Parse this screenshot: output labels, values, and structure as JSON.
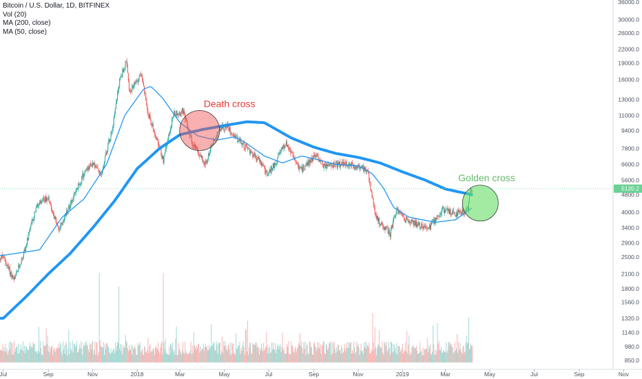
{
  "legend": {
    "symbol": "Bitcoin / U.S. Dollar, 1D, BITFINEX",
    "vol": "Vol (20)",
    "ma200": "MA (200, close)",
    "ma50": "MA (50, close)"
  },
  "price_badge": "5120.2",
  "annotations": {
    "death_cross": "Death cross",
    "golden_cross": "Golden cross"
  },
  "colors": {
    "up": "#26a69a",
    "down": "#ef5350",
    "ma": "#2196f3",
    "death": "#ef5350",
    "golden": "#4caf50",
    "badge": "#6bd195"
  },
  "chart_data": {
    "type": "candlestick",
    "title": "Bitcoin / U.S. Dollar, 1D, BITFINEX",
    "y_scale": "log",
    "y_ticks": [
      850,
      980,
      1140,
      1320,
      1560,
      1800,
      2100,
      2500,
      2900,
      3400,
      4000,
      4800,
      5600,
      6600,
      7800,
      9400,
      11000,
      13000,
      16000,
      19000,
      22000,
      26000,
      30000,
      36000
    ],
    "x_ticks": [
      "Jul",
      "Sep",
      "Nov",
      "2018",
      "Mar",
      "May",
      "Jul",
      "Sep",
      "Nov",
      "2019",
      "Mar",
      "May",
      "Jul",
      "Sep",
      "Nov"
    ],
    "price_anchors": [
      {
        "date": "2017-07-01",
        "close": 2500
      },
      {
        "date": "2017-07-16",
        "close": 1950
      },
      {
        "date": "2017-08-01",
        "close": 2800
      },
      {
        "date": "2017-08-15",
        "close": 4200
      },
      {
        "date": "2017-09-01",
        "close": 4700
      },
      {
        "date": "2017-09-15",
        "close": 3300
      },
      {
        "date": "2017-10-01",
        "close": 4350
      },
      {
        "date": "2017-10-20",
        "close": 6000
      },
      {
        "date": "2017-11-01",
        "close": 6700
      },
      {
        "date": "2017-11-12",
        "close": 5900
      },
      {
        "date": "2017-11-28",
        "close": 9800
      },
      {
        "date": "2017-12-08",
        "close": 16000
      },
      {
        "date": "2017-12-17",
        "close": 19200
      },
      {
        "date": "2017-12-22",
        "close": 13800
      },
      {
        "date": "2018-01-06",
        "close": 17100
      },
      {
        "date": "2018-01-17",
        "close": 11000
      },
      {
        "date": "2018-02-06",
        "close": 6900
      },
      {
        "date": "2018-02-20",
        "close": 11200
      },
      {
        "date": "2018-03-05",
        "close": 11500
      },
      {
        "date": "2018-03-18",
        "close": 8200
      },
      {
        "date": "2018-04-06",
        "close": 6600
      },
      {
        "date": "2018-04-12",
        "close": 7900
      },
      {
        "date": "2018-04-24",
        "close": 9600
      },
      {
        "date": "2018-05-05",
        "close": 9800
      },
      {
        "date": "2018-05-20",
        "close": 8500
      },
      {
        "date": "2018-06-05",
        "close": 7600
      },
      {
        "date": "2018-06-20",
        "close": 6700
      },
      {
        "date": "2018-06-29",
        "close": 5900
      },
      {
        "date": "2018-07-10",
        "close": 6700
      },
      {
        "date": "2018-07-24",
        "close": 8300
      },
      {
        "date": "2018-08-05",
        "close": 7000
      },
      {
        "date": "2018-08-14",
        "close": 6200
      },
      {
        "date": "2018-09-04",
        "close": 7300
      },
      {
        "date": "2018-09-15",
        "close": 6500
      },
      {
        "date": "2018-10-15",
        "close": 6600
      },
      {
        "date": "2018-11-13",
        "close": 6300
      },
      {
        "date": "2018-11-20",
        "close": 4700
      },
      {
        "date": "2018-11-25",
        "close": 3800
      },
      {
        "date": "2018-12-07",
        "close": 3400
      },
      {
        "date": "2018-12-15",
        "close": 3200
      },
      {
        "date": "2018-12-24",
        "close": 4100
      },
      {
        "date": "2019-01-10",
        "close": 3600
      },
      {
        "date": "2019-02-07",
        "close": 3400
      },
      {
        "date": "2019-02-24",
        "close": 4100
      },
      {
        "date": "2019-03-15",
        "close": 3950
      },
      {
        "date": "2019-04-01",
        "close": 4100
      },
      {
        "date": "2019-04-03",
        "close": 4950
      },
      {
        "date": "2019-04-07",
        "close": 5120
      }
    ],
    "ma50_anchors": [
      {
        "date": "2017-07-01",
        "value": 2550
      },
      {
        "date": "2017-08-20",
        "value": 2700
      },
      {
        "date": "2017-09-20",
        "value": 3800
      },
      {
        "date": "2017-10-20",
        "value": 4600
      },
      {
        "date": "2017-11-20",
        "value": 6600
      },
      {
        "date": "2017-12-15",
        "value": 11000
      },
      {
        "date": "2018-01-10",
        "value": 14500
      },
      {
        "date": "2018-01-20",
        "value": 14900
      },
      {
        "date": "2018-02-05",
        "value": 13200
      },
      {
        "date": "2018-03-01",
        "value": 10200
      },
      {
        "date": "2018-03-25",
        "value": 8900
      },
      {
        "date": "2018-04-20",
        "value": 8500
      },
      {
        "date": "2018-05-15",
        "value": 8800
      },
      {
        "date": "2018-06-01",
        "value": 8200
      },
      {
        "date": "2018-06-25",
        "value": 7200
      },
      {
        "date": "2018-07-20",
        "value": 6700
      },
      {
        "date": "2018-08-15",
        "value": 7200
      },
      {
        "date": "2018-09-01",
        "value": 7000
      },
      {
        "date": "2018-10-01",
        "value": 6600
      },
      {
        "date": "2018-11-01",
        "value": 6500
      },
      {
        "date": "2018-11-20",
        "value": 6000
      },
      {
        "date": "2018-12-05",
        "value": 5200
      },
      {
        "date": "2018-12-20",
        "value": 4200
      },
      {
        "date": "2019-01-10",
        "value": 3800
      },
      {
        "date": "2019-02-15",
        "value": 3600
      },
      {
        "date": "2019-03-15",
        "value": 3700
      },
      {
        "date": "2019-04-07",
        "value": 4200
      }
    ],
    "ma200_anchors": [
      {
        "date": "2017-07-01",
        "value": 1320
      },
      {
        "date": "2017-08-01",
        "value": 1650
      },
      {
        "date": "2017-09-01",
        "value": 2100
      },
      {
        "date": "2017-10-01",
        "value": 2600
      },
      {
        "date": "2017-11-01",
        "value": 3400
      },
      {
        "date": "2017-12-01",
        "value": 4500
      },
      {
        "date": "2018-01-01",
        "value": 6300
      },
      {
        "date": "2018-02-01",
        "value": 7800
      },
      {
        "date": "2018-03-01",
        "value": 9000
      },
      {
        "date": "2018-04-01",
        "value": 9500
      },
      {
        "date": "2018-05-01",
        "value": 9900
      },
      {
        "date": "2018-06-01",
        "value": 10300
      },
      {
        "date": "2018-06-25",
        "value": 10200
      },
      {
        "date": "2018-08-01",
        "value": 8700
      },
      {
        "date": "2018-09-01",
        "value": 7900
      },
      {
        "date": "2018-10-01",
        "value": 7400
      },
      {
        "date": "2018-11-01",
        "value": 7100
      },
      {
        "date": "2018-12-01",
        "value": 6700
      },
      {
        "date": "2019-01-01",
        "value": 6100
      },
      {
        "date": "2019-02-01",
        "value": 5600
      },
      {
        "date": "2019-03-01",
        "value": 5100
      },
      {
        "date": "2019-04-07",
        "value": 4800
      }
    ],
    "crosses": [
      {
        "label": "Death cross",
        "date": "2018-03-28",
        "price": 9400
      },
      {
        "label": "Golden cross",
        "date": "2019-04-18",
        "price": 4400
      }
    ],
    "volume_spikes": [
      {
        "date": "2017-11-10",
        "value": 1.0
      },
      {
        "date": "2017-12-07",
        "value": 0.85
      },
      {
        "date": "2018-02-06",
        "value": 1.0
      },
      {
        "date": "2018-11-21",
        "value": 0.55
      },
      {
        "date": "2019-04-02",
        "value": 0.5
      }
    ]
  }
}
